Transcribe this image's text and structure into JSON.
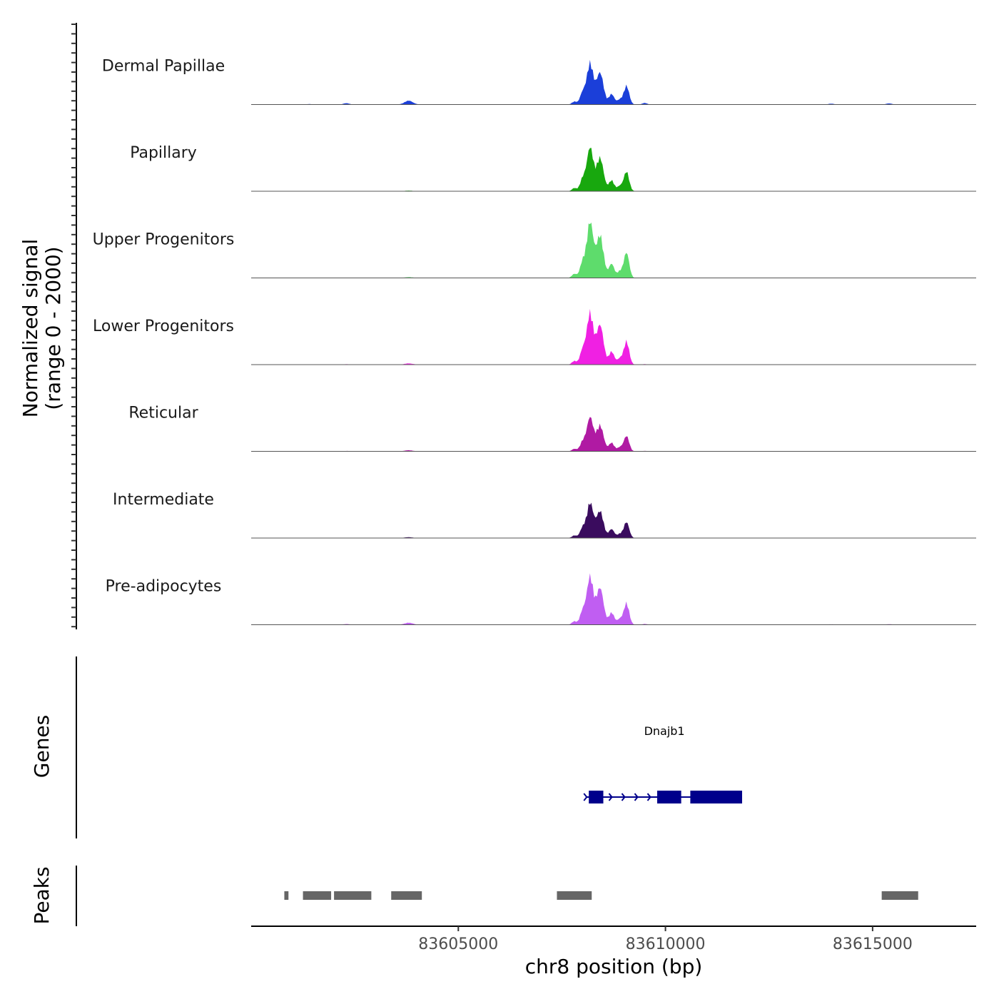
{
  "chart_data": {
    "type": "area",
    "chromosome": "chr8",
    "region": [
      83600000,
      83617500
    ],
    "xlabel": "chr8 position (bp)",
    "ylabel_line1": "Normalized signal",
    "ylabel_line2": "(range 0 - 2000)",
    "ylim": [
      0,
      2000
    ],
    "xticks": [
      {
        "value": 83605000,
        "label": "83605000"
      },
      {
        "value": 83610000,
        "label": "83610000"
      },
      {
        "value": 83615000,
        "label": "83615000"
      }
    ],
    "baseline_color": "#555555",
    "tracks": [
      {
        "name": "Dermal Papillae",
        "color": "#1b3fd9",
        "scale": 1.0,
        "bump_scale": 1.0
      },
      {
        "name": "Papillary",
        "color": "#18a80e",
        "scale": 1.05,
        "bump_scale": 0.15
      },
      {
        "name": "Upper Progenitors",
        "color": "#5edc6c",
        "scale": 1.35,
        "bump_scale": 0.15
      },
      {
        "name": "Lower Progenitors",
        "color": "#f020e3",
        "scale": 1.25,
        "bump_scale": 0.25
      },
      {
        "name": "Reticular",
        "color": "#b01aa3",
        "scale": 0.82,
        "bump_scale": 0.35
      },
      {
        "name": "Intermediate",
        "color": "#3a0c5e",
        "scale": 0.85,
        "bump_scale": 0.25
      },
      {
        "name": "Pre-adipocytes",
        "color": "#c05ef2",
        "scale": 1.16,
        "bump_scale": 0.45
      }
    ],
    "signal_peaks": [
      {
        "center": 83603800,
        "width": 140,
        "height": 140
      },
      {
        "center": 83602300,
        "width": 100,
        "height": 50
      },
      {
        "center": 83601400,
        "width": 80,
        "height": 18
      },
      {
        "center": 83607800,
        "width": 80,
        "height": 110
      },
      {
        "center": 83608000,
        "width": 90,
        "height": 420
      },
      {
        "center": 83608180,
        "width": 110,
        "height": 1500
      },
      {
        "center": 83608420,
        "width": 120,
        "height": 1150
      },
      {
        "center": 83608700,
        "width": 90,
        "height": 380
      },
      {
        "center": 83608900,
        "width": 90,
        "height": 180
      },
      {
        "center": 83609060,
        "width": 90,
        "height": 680
      },
      {
        "center": 83609500,
        "width": 80,
        "height": 60
      },
      {
        "center": 83614000,
        "width": 100,
        "height": 30
      },
      {
        "center": 83615400,
        "width": 100,
        "height": 40
      }
    ],
    "gene": {
      "name": "Dnajb1",
      "strand": "+",
      "color": "#00008b",
      "start": 83608100,
      "end": 83611850,
      "exons": [
        {
          "start": 83608150,
          "end": 83608500
        },
        {
          "start": 83609800,
          "end": 83610380
        },
        {
          "start": 83610600,
          "end": 83611850
        }
      ]
    },
    "peaks": {
      "color": "#666666",
      "regions": [
        [
          83600800,
          83600900
        ],
        [
          83601250,
          83601930
        ],
        [
          83602000,
          83602900
        ],
        [
          83603380,
          83604120
        ],
        [
          83607380,
          83608220
        ],
        [
          83615220,
          83616100
        ]
      ]
    },
    "panels": [
      "Genes",
      "Peaks"
    ]
  }
}
